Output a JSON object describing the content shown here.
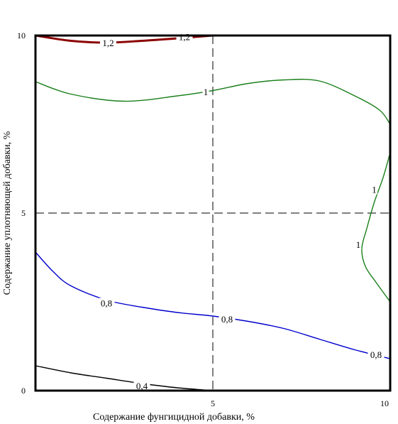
{
  "chart_data": {
    "type": "contour",
    "title": "",
    "xlabel": "Содержание фунгицидной добавки, %",
    "ylabel": "Содержание уплотняющей добавки, %",
    "xlim": [
      0,
      10
    ],
    "ylim": [
      0,
      10
    ],
    "xticks": [
      "5",
      "10"
    ],
    "yticks": [
      "0",
      "5",
      "10"
    ],
    "reference_lines": {
      "x": 5,
      "y": 5,
      "style": "dashed"
    },
    "contours": [
      {
        "level": "1,2",
        "color": "#8b0000",
        "points": [
          [
            0,
            10
          ],
          [
            1,
            9.85
          ],
          [
            2,
            9.8
          ],
          [
            3,
            9.85
          ],
          [
            4,
            9.92
          ],
          [
            5,
            10
          ]
        ],
        "labels": [
          {
            "text": "1,2",
            "x": 2.05,
            "y": 9.78
          },
          {
            "text": "1,2",
            "x": 4.2,
            "y": 9.95
          }
        ]
      },
      {
        "level": "1",
        "color": "#1a7f1a",
        "points": [
          [
            0,
            8.7
          ],
          [
            1,
            8.35
          ],
          [
            2.5,
            8.15
          ],
          [
            4,
            8.3
          ],
          [
            5,
            8.45
          ],
          [
            6,
            8.65
          ],
          [
            7,
            8.75
          ],
          [
            8,
            8.72
          ],
          [
            9,
            8.3
          ],
          [
            9.7,
            7.9
          ],
          [
            10,
            7.5
          ]
        ],
        "labels": [
          {
            "text": "1",
            "x": 4.8,
            "y": 8.4
          }
        ]
      },
      {
        "level": "1",
        "color": "#1a7f1a",
        "points": [
          [
            10,
            6.7
          ],
          [
            9.8,
            6
          ],
          [
            9.55,
            5.3
          ],
          [
            9.35,
            4.6
          ],
          [
            9.2,
            4
          ],
          [
            9.3,
            3.5
          ],
          [
            9.6,
            3.05
          ],
          [
            10,
            2.5
          ]
        ],
        "labels": [
          {
            "text": "1",
            "x": 9.55,
            "y": 5.65
          },
          {
            "text": "1",
            "x": 9.1,
            "y": 4.1
          }
        ]
      },
      {
        "level": "0,8",
        "color": "#0000cd",
        "points": [
          [
            0,
            3.9
          ],
          [
            0.5,
            3.35
          ],
          [
            1,
            2.95
          ],
          [
            2,
            2.55
          ],
          [
            3,
            2.35
          ],
          [
            4,
            2.2
          ],
          [
            5,
            2.1
          ],
          [
            6,
            1.95
          ],
          [
            7,
            1.75
          ],
          [
            8,
            1.45
          ],
          [
            9,
            1.15
          ],
          [
            10,
            0.9
          ]
        ],
        "labels": [
          {
            "text": "0,8",
            "x": 2,
            "y": 2.45
          },
          {
            "text": "0,8",
            "x": 5.4,
            "y": 2.0
          },
          {
            "text": "0,8",
            "x": 9.6,
            "y": 1.0
          }
        ]
      },
      {
        "level": "0,4",
        "color": "#000000",
        "points": [
          [
            0,
            0.7
          ],
          [
            1,
            0.5
          ],
          [
            2,
            0.35
          ],
          [
            3,
            0.2
          ],
          [
            4,
            0.08
          ],
          [
            5,
            0
          ]
        ],
        "labels": [
          {
            "text": "0,4",
            "x": 3,
            "y": 0.12
          }
        ]
      }
    ]
  }
}
